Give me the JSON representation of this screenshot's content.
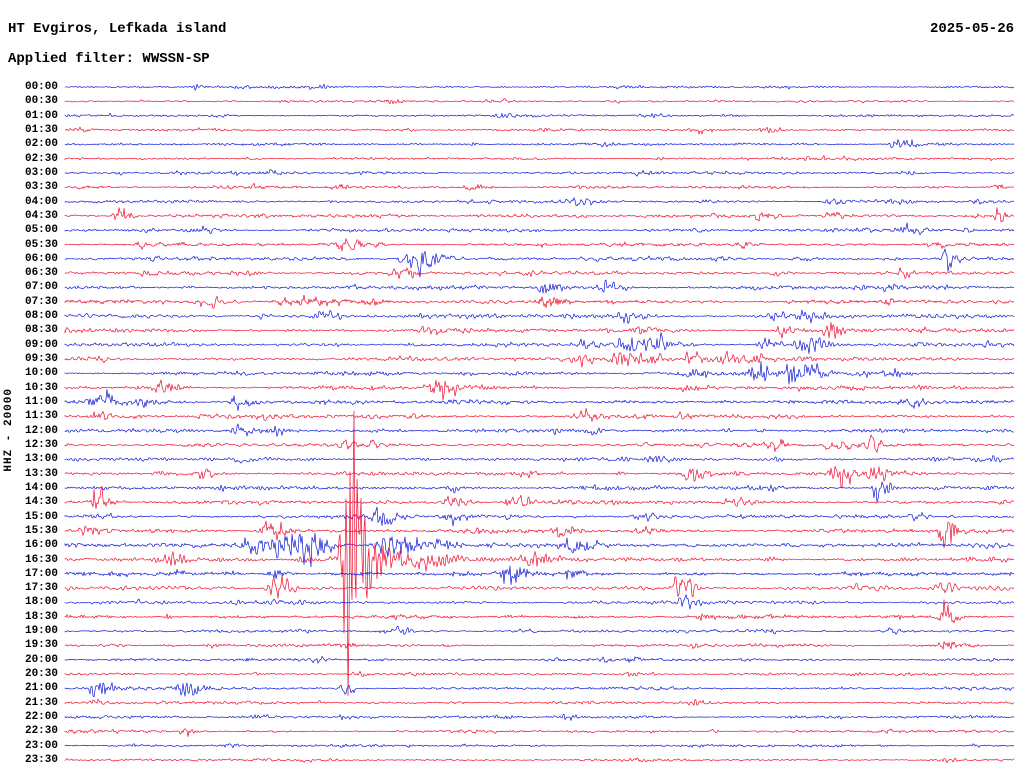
{
  "header": {
    "station_title": "HT Evgiros, Lefkada island",
    "date": "2025-05-26",
    "filter_line": "Applied filter: WWSSN-SP"
  },
  "axis": {
    "channel_label": "HHZ - 20000"
  },
  "palette": {
    "red": "#ee0f32",
    "blue": "#1018d8",
    "text": "#000000",
    "background": "#ffffff"
  },
  "chart_data": {
    "type": "seismogram-helicorder",
    "title": "HT Evgiros, Lefkada island",
    "date": "2025-05-26",
    "filter": "WWSSN-SP",
    "channel": "HHZ",
    "scale": 20000,
    "interval_minutes": 30,
    "first_row": "00:00",
    "last_row": "23:30",
    "trace_color_cycle": [
      "blue",
      "red"
    ],
    "rows": [
      {
        "t": "00:00",
        "c": "b",
        "n": 1.2,
        "b": [
          [
            0.137,
            3,
            4
          ]
        ]
      },
      {
        "t": "00:30",
        "c": "r",
        "n": 1.2,
        "b": [
          [
            0.342,
            4,
            5
          ]
        ]
      },
      {
        "t": "01:00",
        "c": "b",
        "n": 1.2,
        "b": [
          [
            0.46,
            2,
            5
          ]
        ]
      },
      {
        "t": "01:30",
        "c": "r",
        "n": 1.3,
        "b": [
          [
            0.738,
            5,
            5
          ]
        ]
      },
      {
        "t": "02:00",
        "c": "b",
        "n": 1.3,
        "b": [
          [
            0.875,
            7,
            7
          ]
        ]
      },
      {
        "t": "02:30",
        "c": "r",
        "n": 1.3,
        "b": [
          [
            0.195,
            2,
            4
          ],
          [
            0.775,
            2,
            4
          ]
        ]
      },
      {
        "t": "03:00",
        "c": "b",
        "n": 1.5,
        "b": [
          [
            0.606,
            3,
            5
          ],
          [
            0.885,
            3,
            4
          ]
        ]
      },
      {
        "t": "03:30",
        "c": "r",
        "n": 1.5,
        "b": [
          [
            0.427,
            5,
            6
          ],
          [
            0.98,
            5,
            3
          ]
        ]
      },
      {
        "t": "04:00",
        "c": "b",
        "n": 1.6,
        "b": [
          [
            0.543,
            3,
            5
          ],
          [
            0.806,
            4,
            5
          ],
          [
            0.959,
            3,
            3
          ]
        ]
      },
      {
        "t": "04:30",
        "c": "r",
        "n": 1.8,
        "b": [
          [
            0.056,
            14,
            4
          ],
          [
            0.732,
            5,
            5
          ],
          [
            0.808,
            5,
            5
          ],
          [
            0.982,
            12,
            3
          ]
        ]
      },
      {
        "t": "05:00",
        "c": "b",
        "n": 1.8,
        "b": [
          [
            0.148,
            4,
            5
          ],
          [
            0.887,
            6,
            5
          ]
        ]
      },
      {
        "t": "05:30",
        "c": "r",
        "n": 1.8,
        "b": [
          [
            0.29,
            6,
            9
          ],
          [
            0.711,
            4,
            5
          ],
          [
            0.911,
            4,
            4
          ]
        ]
      },
      {
        "t": "06:00",
        "c": "b",
        "n": 1.8,
        "b": [
          [
            0.353,
            5,
            4
          ],
          [
            0.372,
            22,
            7
          ],
          [
            0.683,
            4,
            4
          ],
          [
            0.929,
            18,
            4
          ]
        ]
      },
      {
        "t": "06:30",
        "c": "r",
        "n": 1.8,
        "b": [
          [
            0.192,
            4,
            4
          ],
          [
            0.351,
            8,
            6
          ],
          [
            0.748,
            4,
            4
          ],
          [
            0.88,
            5,
            4
          ]
        ]
      },
      {
        "t": "07:00",
        "c": "b",
        "n": 1.9,
        "b": [
          [
            0.506,
            10,
            6
          ],
          [
            0.569,
            8,
            6
          ],
          [
            0.869,
            4,
            4
          ]
        ]
      },
      {
        "t": "07:30",
        "c": "r",
        "n": 2.0,
        "b": [
          [
            0.148,
            10,
            7
          ],
          [
            0.237,
            5,
            18
          ],
          [
            0.506,
            7,
            6
          ],
          [
            0.867,
            4,
            4
          ]
        ]
      },
      {
        "t": "08:00",
        "c": "b",
        "n": 2.0,
        "b": [
          [
            0.269,
            9,
            6
          ],
          [
            0.59,
            6,
            6
          ],
          [
            0.748,
            6,
            5
          ],
          [
            0.78,
            16,
            5
          ]
        ]
      },
      {
        "t": "08:30",
        "c": "r",
        "n": 2.0,
        "b": [
          [
            0.374,
            4,
            4
          ],
          [
            0.601,
            6,
            5
          ],
          [
            0.755,
            7,
            5
          ],
          [
            0.806,
            14,
            5
          ]
        ]
      },
      {
        "t": "09:00",
        "c": "b",
        "n": 2.0,
        "b": [
          [
            0.543,
            5,
            5
          ],
          [
            0.59,
            12,
            7
          ],
          [
            0.622,
            10,
            6
          ],
          [
            0.735,
            12,
            5
          ],
          [
            0.774,
            12,
            5
          ],
          [
            0.79,
            10,
            5
          ]
        ]
      },
      {
        "t": "09:30",
        "c": "r",
        "n": 2.0,
        "b": [
          [
            0.543,
            8,
            6
          ],
          [
            0.583,
            14,
            6
          ],
          [
            0.611,
            12,
            6
          ],
          [
            0.659,
            8,
            6
          ],
          [
            0.69,
            8,
            6
          ],
          [
            0.727,
            8,
            5
          ]
        ]
      },
      {
        "t": "10:00",
        "c": "b",
        "n": 2.0,
        "b": [
          [
            0.653,
            6,
            5
          ],
          [
            0.727,
            14,
            5
          ],
          [
            0.764,
            12,
            5
          ],
          [
            0.787,
            12,
            5
          ],
          [
            0.838,
            5,
            5
          ],
          [
            0.869,
            6,
            5
          ]
        ]
      },
      {
        "t": "10:30",
        "c": "r",
        "n": 2.0,
        "b": [
          [
            0.1,
            12,
            5
          ],
          [
            0.387,
            8,
            6
          ],
          [
            0.4,
            7,
            5
          ],
          [
            0.653,
            4,
            4
          ],
          [
            0.901,
            4,
            4
          ]
        ]
      },
      {
        "t": "11:00",
        "c": "b",
        "n": 2.0,
        "b": [
          [
            0.032,
            16,
            6
          ],
          [
            0.079,
            7,
            5
          ],
          [
            0.179,
            8,
            6
          ],
          [
            0.887,
            6,
            5
          ]
        ]
      },
      {
        "t": "11:30",
        "c": "r",
        "n": 2.0,
        "b": [
          [
            0.032,
            6,
            5
          ],
          [
            0.358,
            4,
            4
          ],
          [
            0.548,
            7,
            6
          ],
          [
            0.648,
            4,
            4
          ]
        ]
      },
      {
        "t": "12:00",
        "c": "b",
        "n": 1.9,
        "b": [
          [
            0.181,
            8,
            5
          ],
          [
            0.223,
            5,
            5
          ],
          [
            0.553,
            4,
            4
          ]
        ]
      },
      {
        "t": "12:30",
        "c": "r",
        "n": 2.0,
        "b": [
          [
            0.295,
            5,
            4
          ],
          [
            0.743,
            8,
            6
          ],
          [
            0.806,
            8,
            6
          ],
          [
            0.846,
            8,
            6
          ]
        ]
      },
      {
        "t": "13:00",
        "c": "b",
        "n": 1.9,
        "b": [
          [
            0.184,
            4,
            4
          ],
          [
            0.622,
            7,
            5
          ]
        ]
      },
      {
        "t": "13:30",
        "c": "r",
        "n": 2.0,
        "b": [
          [
            0.142,
            6,
            5
          ],
          [
            0.659,
            12,
            6
          ],
          [
            0.811,
            14,
            6
          ],
          [
            0.85,
            12,
            6
          ]
        ]
      },
      {
        "t": "14:00",
        "c": "b",
        "n": 2.0,
        "b": [
          [
            0.406,
            4,
            4
          ],
          [
            0.856,
            16,
            4
          ]
        ]
      },
      {
        "t": "14:30",
        "c": "r",
        "n": 2.0,
        "b": [
          [
            0.032,
            16,
            5
          ],
          [
            0.406,
            7,
            6
          ],
          [
            0.469,
            7,
            6
          ],
          [
            0.701,
            4,
            4
          ]
        ]
      },
      {
        "t": "15:00",
        "c": "b",
        "n": 2.0,
        "b": [
          [
            0.332,
            12,
            6
          ],
          [
            0.403,
            10,
            6
          ],
          [
            0.606,
            6,
            5
          ],
          [
            0.896,
            4,
            4
          ]
        ]
      },
      {
        "t": "15:30",
        "c": "r",
        "n": 2.0,
        "b": [
          [
            0.021,
            7,
            5
          ],
          [
            0.216,
            12,
            7
          ],
          [
            0.522,
            7,
            6
          ],
          [
            0.606,
            6,
            5
          ],
          [
            0.927,
            30,
            4
          ]
        ]
      },
      {
        "t": "16:00",
        "c": "b",
        "n": 2.2,
        "b": [
          [
            0.195,
            12,
            9
          ],
          [
            0.232,
            16,
            10
          ],
          [
            0.258,
            14,
            8
          ],
          [
            0.337,
            14,
            7
          ],
          [
            0.358,
            12,
            6
          ],
          [
            0.395,
            8,
            6
          ],
          [
            0.532,
            10,
            6
          ]
        ]
      },
      {
        "t": "16:30",
        "c": "r",
        "n": 2.2,
        "b": [
          [
            0.111,
            6,
            5
          ],
          [
            0.297,
            200,
            5
          ],
          [
            0.321,
            28,
            22
          ],
          [
            0.49,
            12,
            8
          ]
        ]
      },
      {
        "t": "17:00",
        "c": "b",
        "n": 2.0,
        "b": [
          [
            0.221,
            6,
            5
          ],
          [
            0.464,
            10,
            7
          ],
          [
            0.532,
            7,
            5
          ]
        ]
      },
      {
        "t": "17:30",
        "c": "r",
        "n": 2.0,
        "b": [
          [
            0.221,
            20,
            5
          ],
          [
            0.648,
            18,
            6
          ],
          [
            0.922,
            8,
            4
          ]
        ]
      },
      {
        "t": "18:00",
        "c": "b",
        "n": 1.8,
        "b": [
          [
            0.653,
            10,
            5
          ]
        ]
      },
      {
        "t": "18:30",
        "c": "r",
        "n": 1.8,
        "b": [
          [
            0.669,
            4,
            4
          ],
          [
            0.927,
            20,
            4
          ]
        ]
      },
      {
        "t": "19:00",
        "c": "b",
        "n": 1.5,
        "b": [
          [
            0.353,
            3,
            4
          ],
          [
            0.869,
            4,
            4
          ]
        ]
      },
      {
        "t": "19:30",
        "c": "r",
        "n": 1.5,
        "b": [
          [
            0.664,
            4,
            4
          ],
          [
            0.927,
            7,
            4
          ]
        ]
      },
      {
        "t": "20:00",
        "c": "b",
        "n": 1.4,
        "b": [
          [
            0.595,
            3,
            4
          ]
        ]
      },
      {
        "t": "20:30",
        "c": "r",
        "n": 1.4,
        "b": [
          [
            0.595,
            3,
            4
          ]
        ]
      },
      {
        "t": "21:00",
        "c": "b",
        "n": 1.5,
        "b": [
          [
            0.032,
            14,
            6
          ],
          [
            0.123,
            16,
            7
          ],
          [
            0.295,
            6,
            4
          ]
        ]
      },
      {
        "t": "21:30",
        "c": "r",
        "n": 1.4,
        "b": [
          [
            0.032,
            4,
            4
          ]
        ]
      },
      {
        "t": "22:00",
        "c": "b",
        "n": 1.4,
        "b": [
          [
            0.295,
            6,
            4
          ]
        ]
      },
      {
        "t": "22:30",
        "c": "r",
        "n": 1.4,
        "b": [
          [
            0.126,
            10,
            3
          ]
        ]
      },
      {
        "t": "23:00",
        "c": "b",
        "n": 1.3,
        "b": []
      },
      {
        "t": "23:30",
        "c": "r",
        "n": 1.3,
        "b": []
      }
    ]
  }
}
